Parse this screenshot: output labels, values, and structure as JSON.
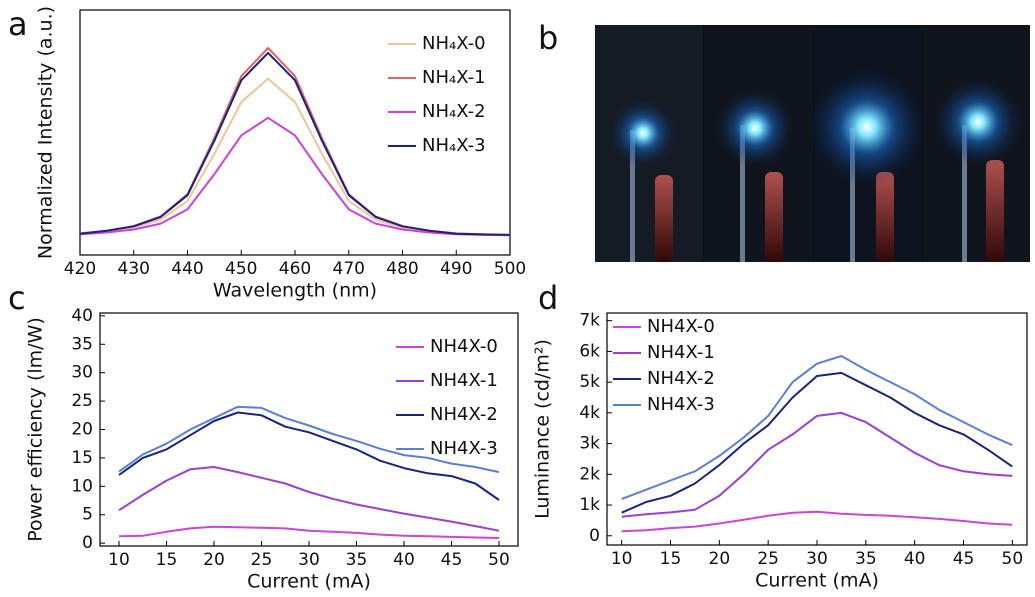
{
  "photo": {
    "label": "b"
  },
  "chart_data": [
    {
      "type": "line",
      "label": "a",
      "xlabel": "Wavelength (nm)",
      "ylabel": "Normalized Intensity (a.u.)",
      "x": [
        420,
        425,
        430,
        435,
        440,
        445,
        450,
        455,
        460,
        465,
        470,
        475,
        480,
        485,
        490,
        495,
        500
      ],
      "xlim": [
        420,
        500
      ],
      "xticks": [
        420,
        430,
        440,
        450,
        460,
        470,
        480,
        490,
        500
      ],
      "ylim": [
        0,
        1
      ],
      "legend": "upper right",
      "series": [
        {
          "name": "NH₄X-0",
          "color": "#f0c39a",
          "values": [
            0.086,
            0.096,
            0.112,
            0.144,
            0.221,
            0.413,
            0.624,
            0.72,
            0.624,
            0.413,
            0.221,
            0.144,
            0.112,
            0.096,
            0.086,
            0.083,
            0.082
          ]
        },
        {
          "name": "NH₄X-1",
          "color": "#e06464",
          "values": [
            0.088,
            0.099,
            0.118,
            0.157,
            0.248,
            0.478,
            0.73,
            0.845,
            0.73,
            0.478,
            0.248,
            0.157,
            0.118,
            0.099,
            0.088,
            0.084,
            0.082
          ]
        },
        {
          "name": "NH₄X-2",
          "color": "#d040d8",
          "values": [
            0.085,
            0.092,
            0.104,
            0.128,
            0.186,
            0.33,
            0.488,
            0.56,
            0.488,
            0.33,
            0.186,
            0.128,
            0.104,
            0.092,
            0.085,
            0.082,
            0.081
          ]
        },
        {
          "name": "NH₄X-3",
          "color": "#1a237e",
          "values": [
            0.087,
            0.099,
            0.117,
            0.155,
            0.244,
            0.467,
            0.713,
            0.825,
            0.713,
            0.467,
            0.244,
            0.155,
            0.117,
            0.099,
            0.087,
            0.084,
            0.082
          ]
        }
      ]
    },
    {
      "type": "line",
      "label": "c",
      "xlabel": "Current (mA)",
      "ylabel": "Power efficiency (lm/W)",
      "x": [
        10,
        12.5,
        15,
        17.5,
        20,
        22.5,
        25,
        27.5,
        30,
        32.5,
        35,
        37.5,
        40,
        42.5,
        45,
        47.5,
        50
      ],
      "xlim": [
        8,
        52
      ],
      "xticks": [
        10,
        15,
        20,
        25,
        30,
        35,
        40,
        45,
        50
      ],
      "ylim": [
        -0.5,
        40.5
      ],
      "yticks": [
        0,
        5,
        10,
        15,
        20,
        25,
        30,
        35,
        40
      ],
      "legend": "upper right",
      "series": [
        {
          "name": "NH4X-0",
          "color": "#cc44d8",
          "values": [
            1.2,
            1.3,
            2.0,
            2.6,
            2.9,
            2.8,
            2.7,
            2.6,
            2.2,
            2.0,
            1.8,
            1.5,
            1.3,
            1.2,
            1.1,
            1.0,
            0.9
          ]
        },
        {
          "name": "NH4X-1",
          "color": "#9b3fd6",
          "values": [
            5.8,
            8.5,
            11,
            13,
            13.4,
            12.5,
            11.5,
            10.5,
            9,
            7.8,
            6.8,
            6,
            5.2,
            4.5,
            3.8,
            3,
            2.2
          ]
        },
        {
          "name": "NH4X-2",
          "color": "#1a237e",
          "values": [
            12,
            15,
            16.5,
            19,
            21.5,
            23,
            22.5,
            20.5,
            19.5,
            18,
            16.5,
            14.5,
            13.2,
            12.3,
            11.8,
            10.5,
            7.6
          ]
        },
        {
          "name": "NH4X-3",
          "color": "#5b7fd6",
          "values": [
            12.6,
            15.6,
            17.5,
            20,
            22,
            24,
            23.8,
            22,
            20.7,
            19.2,
            18,
            16.6,
            15.5,
            15,
            14,
            13.4,
            12.5
          ]
        }
      ]
    },
    {
      "type": "line",
      "label": "d",
      "xlabel": "Current (mA)",
      "ylabel": "Luminance (cd/m²)",
      "x": [
        10,
        12.5,
        15,
        17.5,
        20,
        22.5,
        25,
        27.5,
        30,
        32.5,
        35,
        37.5,
        40,
        42.5,
        45,
        47.5,
        50
      ],
      "xlim": [
        8.5,
        51.5
      ],
      "xticks": [
        10,
        15,
        20,
        25,
        30,
        35,
        40,
        45,
        50
      ],
      "ylim": [
        -300,
        7250
      ],
      "yticks": [
        0,
        {
          "value": 1000,
          "label": "1k"
        },
        {
          "value": 2000,
          "label": "2k"
        },
        {
          "value": 3000,
          "label": "3k"
        },
        {
          "value": 4000,
          "label": "4k"
        },
        {
          "value": 5000,
          "label": "5k"
        },
        {
          "value": 6000,
          "label": "6k"
        },
        {
          "value": 7000,
          "label": "7k"
        }
      ],
      "legend": "upper left",
      "series": [
        {
          "name": "NH4X-0",
          "color": "#cc44d8",
          "values": [
            150,
            180,
            250,
            300,
            400,
            520,
            650,
            750,
            780,
            720,
            680,
            650,
            600,
            550,
            480,
            400,
            360
          ]
        },
        {
          "name": "NH4X-1",
          "color": "#9b3fd6",
          "values": [
            620,
            700,
            760,
            850,
            1300,
            2000,
            2800,
            3300,
            3900,
            4000,
            3700,
            3200,
            2700,
            2300,
            2100,
            2000,
            1950
          ]
        },
        {
          "name": "NH4X-2",
          "color": "#1a237e",
          "values": [
            750,
            1100,
            1300,
            1700,
            2300,
            3000,
            3600,
            4500,
            5200,
            5300,
            4900,
            4500,
            4000,
            3600,
            3300,
            2800,
            2250
          ]
        },
        {
          "name": "NH4X-3",
          "color": "#5b7fd6",
          "values": [
            1200,
            1500,
            1800,
            2100,
            2600,
            3200,
            3900,
            5000,
            5600,
            5850,
            5400,
            5000,
            4600,
            4100,
            3700,
            3300,
            2950
          ]
        }
      ]
    }
  ]
}
